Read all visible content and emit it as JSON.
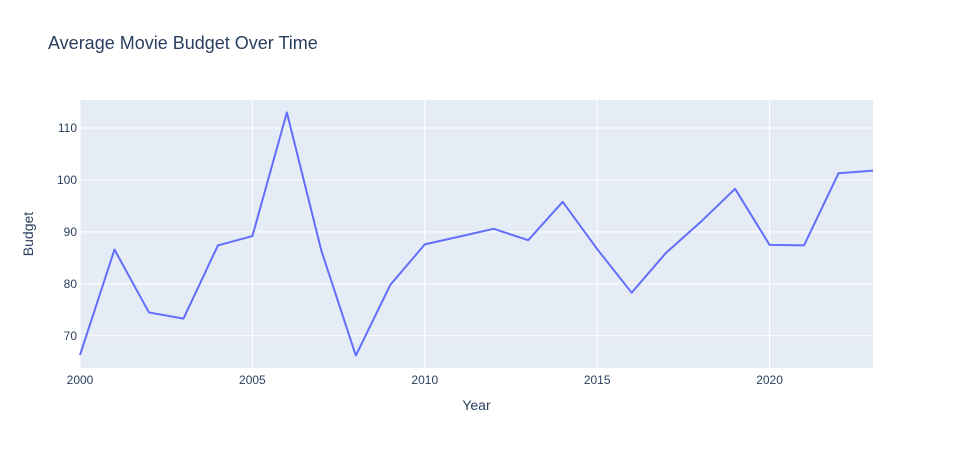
{
  "chart_data": {
    "type": "line",
    "title": "Average Movie Budget Over Time",
    "xlabel": "Year",
    "ylabel": "Budget",
    "xlim": [
      2000,
      2023
    ],
    "ylim": [
      63.8,
      115.4
    ],
    "x_ticks": [
      2000,
      2005,
      2010,
      2015,
      2020
    ],
    "y_ticks": [
      70,
      80,
      90,
      100,
      110
    ],
    "grid": true,
    "legend": "none",
    "series": [
      {
        "color": "#636efa",
        "x": [
          2000,
          2001,
          2002,
          2003,
          2004,
          2005,
          2006,
          2007,
          2008,
          2009,
          2010,
          2011,
          2012,
          2013,
          2014,
          2015,
          2016,
          2017,
          2018,
          2019,
          2020,
          2021,
          2022,
          2023
        ],
        "y": [
          66.3,
          86.6,
          74.5,
          73.3,
          87.4,
          89.2,
          113.0,
          86.4,
          66.2,
          79.8,
          87.6,
          89.1,
          90.6,
          88.4,
          95.8,
          86.7,
          78.3,
          86.0,
          91.9,
          98.3,
          87.5,
          87.4,
          101.3,
          101.8
        ]
      }
    ],
    "colors": {
      "plot_background": "#e5ecf6",
      "grid": "#ffffff",
      "text": "#2a3f5f",
      "tick_text": "#2a3f5f"
    }
  }
}
